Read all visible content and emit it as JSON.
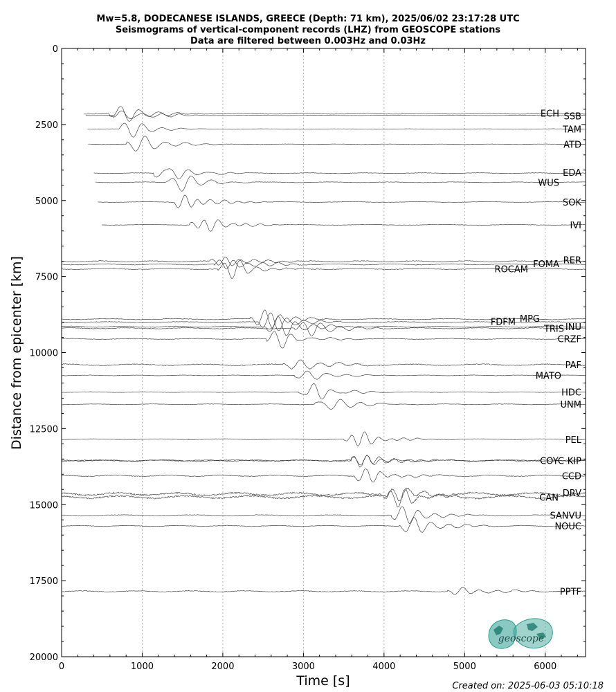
{
  "title": {
    "line1": "Mw=5.8, DODECANESE ISLANDS, GREECE (Depth: 71 km), 2025/06/02 23:17:28 UTC",
    "line2": "Seismograms of vertical-component records (LHZ) from GEOSCOPE stations",
    "line3": "Data are filtered between 0.003Hz and 0.03Hz"
  },
  "credit": "Created on: 2025-06-03 05:10:18",
  "logo_text": "geoscope",
  "colors": {
    "trace": "#333333",
    "grid": "#b0b0b0",
    "logo": "#2a9d8f"
  },
  "chart_data": {
    "type": "line",
    "xlabel": "Time [s]",
    "ylabel": "Distance from epicenter [km]",
    "xlim": [
      0,
      6500
    ],
    "ylim": [
      20000,
      0
    ],
    "y_inverted": true,
    "xticks": [
      0,
      1000,
      2000,
      3000,
      4000,
      5000,
      6000
    ],
    "yticks": [
      0,
      2500,
      5000,
      7500,
      10000,
      12500,
      15000,
      17500,
      20000
    ],
    "grid": "vertical dotted at x ticks",
    "stations": [
      {
        "name": "ECH",
        "distance": 2150,
        "arrival": 650,
        "amp": 0.9,
        "noise": 0.08,
        "start": 280
      },
      {
        "name": "SSB",
        "distance": 2200,
        "arrival": 700,
        "amp": 0.8,
        "noise": 0.08,
        "start": 300
      },
      {
        "name": "TAM",
        "distance": 2650,
        "arrival": 760,
        "amp": 0.8,
        "noise": 0.08,
        "start": 320
      },
      {
        "name": "ATD",
        "distance": 3150,
        "arrival": 870,
        "amp": 0.8,
        "noise": 0.08,
        "start": 330
      },
      {
        "name": "EDA",
        "distance": 4100,
        "arrival": 1200,
        "amp": 1.0,
        "noise": 0.1,
        "start": 400
      },
      {
        "name": "WUS",
        "distance": 4400,
        "arrival": 1350,
        "amp": 1.0,
        "noise": 0.1,
        "start": 420
      },
      {
        "name": "SOK",
        "distance": 5050,
        "arrival": 1450,
        "amp": 0.9,
        "noise": 0.1,
        "start": 450
      },
      {
        "name": "IVI",
        "distance": 5800,
        "arrival": 1650,
        "amp": 0.9,
        "noise": 0.1,
        "start": 500
      },
      {
        "name": "RER",
        "distance": 7000,
        "arrival": 1900,
        "amp": 1.0,
        "noise": 0.15,
        "start": 0
      },
      {
        "name": "FOMA",
        "distance": 7100,
        "arrival": 1950,
        "amp": 1.0,
        "noise": 0.15,
        "start": 0
      },
      {
        "name": "ROCAM",
        "distance": 7250,
        "arrival": 2000,
        "amp": 1.0,
        "noise": 0.15,
        "start": 0
      },
      {
        "name": "MPG",
        "distance": 8900,
        "arrival": 2400,
        "amp": 1.0,
        "noise": 0.15,
        "start": 0
      },
      {
        "name": "FDFM",
        "distance": 9000,
        "arrival": 2500,
        "amp": 1.0,
        "noise": 0.15,
        "start": 0
      },
      {
        "name": "INU",
        "distance": 9150,
        "arrival": 2600,
        "amp": 1.0,
        "noise": 0.15,
        "start": 0
      },
      {
        "name": "TRIS",
        "distance": 9200,
        "arrival": 2950,
        "amp": 1.0,
        "noise": 0.15,
        "start": 0
      },
      {
        "name": "CRZF",
        "distance": 9550,
        "arrival": 2600,
        "amp": 0.9,
        "noise": 0.15,
        "start": 0
      },
      {
        "name": "PAF",
        "distance": 10400,
        "arrival": 2800,
        "amp": 0.9,
        "noise": 0.25,
        "start": 0
      },
      {
        "name": "MATO",
        "distance": 10750,
        "arrival": 2950,
        "amp": 0.9,
        "noise": 0.1,
        "start": 0
      },
      {
        "name": "HDC",
        "distance": 11300,
        "arrival": 3000,
        "amp": 0.9,
        "noise": 0.1,
        "start": 0
      },
      {
        "name": "UNM",
        "distance": 11700,
        "arrival": 3200,
        "amp": 0.9,
        "noise": 0.12,
        "start": 0
      },
      {
        "name": "PEL",
        "distance": 12850,
        "arrival": 3550,
        "amp": 0.9,
        "noise": 0.12,
        "start": 0
      },
      {
        "name": "KIP",
        "distance": 13550,
        "arrival": 3650,
        "amp": 0.9,
        "noise": 0.2,
        "start": 0
      },
      {
        "name": "COYC",
        "distance": 13550,
        "arrival": 3650,
        "amp": 0.9,
        "noise": 0.2,
        "start": 0
      },
      {
        "name": "CCD",
        "distance": 14050,
        "arrival": 3700,
        "amp": 0.9,
        "noise": 0.2,
        "start": 0
      },
      {
        "name": "DRV",
        "distance": 14650,
        "arrival": 4000,
        "amp": 1.0,
        "noise": 0.4,
        "start": 0
      },
      {
        "name": "CAN",
        "distance": 14750,
        "arrival": 4100,
        "amp": 1.0,
        "noise": 0.4,
        "start": 0
      },
      {
        "name": "SANVU",
        "distance": 15350,
        "arrival": 4150,
        "amp": 0.9,
        "noise": 0.15,
        "start": 0
      },
      {
        "name": "NOUC",
        "distance": 15700,
        "arrival": 4250,
        "amp": 0.9,
        "noise": 0.15,
        "start": 0
      },
      {
        "name": "PPTF",
        "distance": 17850,
        "arrival": 4850,
        "amp": 0.8,
        "noise": 0.2,
        "start": 0
      }
    ]
  }
}
